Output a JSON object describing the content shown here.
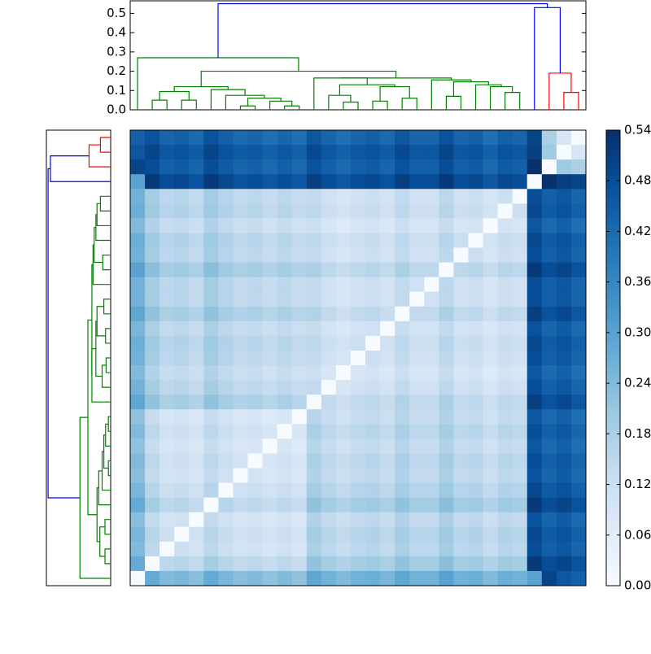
{
  "chart_data": {
    "type": "clustermap",
    "zlim": [
      0,
      0.54
    ],
    "colormap": [
      "#f7fbff",
      "#deebf7",
      "#c6dbef",
      "#9ecae1",
      "#6baed6",
      "#4292c6",
      "#2171b5",
      "#08519c",
      "#08306b"
    ],
    "colorbar": {
      "ticks": [
        {
          "value": 0,
          "label": "0.00"
        },
        0.06,
        0.12,
        0.18,
        0.24,
        {
          "value": 0.3,
          "label": "0.30"
        },
        0.36,
        0.42,
        0.48,
        0.54
      ]
    },
    "matrix": [
      [
        0.44,
        0.47,
        0.43,
        0.44,
        0.42,
        0.47,
        0.44,
        0.42,
        0.43,
        0.41,
        0.43,
        0.41,
        0.46,
        0.43,
        0.41,
        0.43,
        0.44,
        0.42,
        0.46,
        0.43,
        0.43,
        0.47,
        0.43,
        0.44,
        0.41,
        0.44,
        0.43,
        0.5,
        0.18,
        0.09,
        0
      ],
      [
        0.46,
        0.5,
        0.46,
        0.47,
        0.45,
        0.5,
        0.47,
        0.45,
        0.46,
        0.44,
        0.46,
        0.44,
        0.49,
        0.46,
        0.44,
        0.46,
        0.47,
        0.45,
        0.49,
        0.46,
        0.46,
        0.5,
        0.46,
        0.47,
        0.44,
        0.47,
        0.46,
        0.51,
        0.2,
        0,
        0.09
      ],
      [
        0.5,
        0.48,
        0.44,
        0.45,
        0.43,
        0.48,
        0.45,
        0.43,
        0.44,
        0.42,
        0.44,
        0.42,
        0.47,
        0.44,
        0.42,
        0.44,
        0.45,
        0.43,
        0.47,
        0.44,
        0.44,
        0.48,
        0.44,
        0.45,
        0.42,
        0.45,
        0.44,
        0.54,
        0,
        0.2,
        0.18
      ],
      [
        0.3,
        0.52,
        0.48,
        0.49,
        0.47,
        0.52,
        0.49,
        0.47,
        0.48,
        0.46,
        0.48,
        0.46,
        0.51,
        0.48,
        0.46,
        0.48,
        0.49,
        0.47,
        0.51,
        0.48,
        0.48,
        0.52,
        0.48,
        0.49,
        0.46,
        0.49,
        0.48,
        0,
        0.54,
        0.51,
        0.5
      ],
      [
        0.26,
        0.19,
        0.15,
        0.16,
        0.14,
        0.19,
        0.16,
        0.14,
        0.15,
        0.13,
        0.15,
        0.13,
        0.14,
        0.11,
        0.09,
        0.11,
        0.12,
        0.1,
        0.14,
        0.11,
        0.11,
        0.15,
        0.11,
        0.12,
        0.09,
        0.12,
        0,
        0.48,
        0.44,
        0.46,
        0.43
      ],
      [
        0.27,
        0.2,
        0.16,
        0.17,
        0.15,
        0.2,
        0.17,
        0.15,
        0.16,
        0.14,
        0.16,
        0.14,
        0.15,
        0.12,
        0.1,
        0.12,
        0.13,
        0.11,
        0.15,
        0.12,
        0.12,
        0.16,
        0.12,
        0.13,
        0.1,
        0,
        0.12,
        0.49,
        0.45,
        0.47,
        0.44
      ],
      [
        0.24,
        0.17,
        0.13,
        0.14,
        0.12,
        0.17,
        0.14,
        0.12,
        0.13,
        0.11,
        0.13,
        0.11,
        0.12,
        0.09,
        0.07,
        0.09,
        0.1,
        0.08,
        0.12,
        0.09,
        0.09,
        0.13,
        0.09,
        0.1,
        0,
        0.1,
        0.09,
        0.46,
        0.42,
        0.44,
        0.41
      ],
      [
        0.27,
        0.2,
        0.16,
        0.17,
        0.15,
        0.2,
        0.17,
        0.15,
        0.16,
        0.14,
        0.16,
        0.14,
        0.15,
        0.12,
        0.1,
        0.12,
        0.13,
        0.11,
        0.15,
        0.12,
        0.12,
        0.16,
        0.12,
        0,
        0.1,
        0.13,
        0.12,
        0.49,
        0.45,
        0.47,
        0.44
      ],
      [
        0.26,
        0.19,
        0.15,
        0.16,
        0.14,
        0.19,
        0.16,
        0.14,
        0.15,
        0.13,
        0.15,
        0.13,
        0.14,
        0.11,
        0.09,
        0.11,
        0.12,
        0.1,
        0.14,
        0.11,
        0.11,
        0.15,
        0,
        0.12,
        0.09,
        0.12,
        0.11,
        0.48,
        0.44,
        0.46,
        0.43
      ],
      [
        0.3,
        0.23,
        0.19,
        0.2,
        0.18,
        0.23,
        0.2,
        0.18,
        0.19,
        0.17,
        0.19,
        0.17,
        0.18,
        0.15,
        0.13,
        0.15,
        0.16,
        0.14,
        0.18,
        0.15,
        0.15,
        0,
        0.15,
        0.16,
        0.13,
        0.16,
        0.15,
        0.52,
        0.48,
        0.5,
        0.47
      ],
      [
        0.26,
        0.19,
        0.15,
        0.16,
        0.14,
        0.19,
        0.16,
        0.14,
        0.15,
        0.13,
        0.15,
        0.13,
        0.14,
        0.11,
        0.09,
        0.11,
        0.12,
        0.1,
        0.14,
        0.11,
        0,
        0.15,
        0.11,
        0.12,
        0.09,
        0.12,
        0.11,
        0.48,
        0.44,
        0.46,
        0.43
      ],
      [
        0.26,
        0.19,
        0.15,
        0.16,
        0.14,
        0.19,
        0.16,
        0.14,
        0.15,
        0.13,
        0.15,
        0.13,
        0.14,
        0.11,
        0.09,
        0.11,
        0.12,
        0.1,
        0.14,
        0,
        0.11,
        0.15,
        0.11,
        0.12,
        0.09,
        0.12,
        0.11,
        0.48,
        0.44,
        0.46,
        0.43
      ],
      [
        0.29,
        0.22,
        0.18,
        0.19,
        0.17,
        0.22,
        0.19,
        0.17,
        0.18,
        0.16,
        0.18,
        0.16,
        0.17,
        0.14,
        0.12,
        0.14,
        0.15,
        0.13,
        0,
        0.14,
        0.14,
        0.18,
        0.14,
        0.15,
        0.12,
        0.15,
        0.14,
        0.51,
        0.47,
        0.49,
        0.46
      ],
      [
        0.25,
        0.18,
        0.14,
        0.15,
        0.13,
        0.18,
        0.15,
        0.13,
        0.14,
        0.12,
        0.14,
        0.12,
        0.13,
        0.1,
        0.08,
        0.1,
        0.11,
        0,
        0.13,
        0.1,
        0.1,
        0.14,
        0.1,
        0.11,
        0.08,
        0.11,
        0.1,
        0.47,
        0.43,
        0.45,
        0.42
      ],
      [
        0.27,
        0.2,
        0.16,
        0.17,
        0.15,
        0.2,
        0.17,
        0.15,
        0.16,
        0.14,
        0.16,
        0.14,
        0.15,
        0.12,
        0.1,
        0.12,
        0,
        0.11,
        0.15,
        0.12,
        0.12,
        0.16,
        0.12,
        0.13,
        0.1,
        0.13,
        0.12,
        0.49,
        0.45,
        0.47,
        0.44
      ],
      [
        0.26,
        0.19,
        0.15,
        0.16,
        0.14,
        0.19,
        0.16,
        0.14,
        0.15,
        0.13,
        0.15,
        0.13,
        0.14,
        0.11,
        0.09,
        0,
        0.12,
        0.1,
        0.14,
        0.11,
        0.11,
        0.15,
        0.11,
        0.12,
        0.09,
        0.12,
        0.11,
        0.48,
        0.44,
        0.46,
        0.43
      ],
      [
        0.24,
        0.17,
        0.13,
        0.14,
        0.12,
        0.17,
        0.14,
        0.12,
        0.13,
        0.11,
        0.13,
        0.11,
        0.12,
        0.09,
        0,
        0.09,
        0.1,
        0.08,
        0.12,
        0.09,
        0.09,
        0.13,
        0.09,
        0.1,
        0.07,
        0.1,
        0.09,
        0.46,
        0.42,
        0.44,
        0.41
      ],
      [
        0.26,
        0.19,
        0.15,
        0.16,
        0.14,
        0.19,
        0.16,
        0.14,
        0.15,
        0.13,
        0.15,
        0.13,
        0.14,
        0,
        0.09,
        0.11,
        0.12,
        0.1,
        0.14,
        0.11,
        0.11,
        0.15,
        0.11,
        0.12,
        0.09,
        0.12,
        0.11,
        0.48,
        0.44,
        0.46,
        0.43
      ],
      [
        0.29,
        0.22,
        0.18,
        0.19,
        0.17,
        0.22,
        0.19,
        0.17,
        0.18,
        0.16,
        0.18,
        0.16,
        0,
        0.14,
        0.12,
        0.14,
        0.15,
        0.13,
        0.17,
        0.14,
        0.14,
        0.18,
        0.14,
        0.15,
        0.12,
        0.15,
        0.14,
        0.51,
        0.47,
        0.49,
        0.46
      ],
      [
        0.22,
        0.13,
        0.09,
        0.1,
        0.08,
        0.13,
        0.1,
        0.08,
        0.09,
        0.07,
        0.09,
        0,
        0.16,
        0.13,
        0.11,
        0.13,
        0.14,
        0.12,
        0.16,
        0.13,
        0.13,
        0.17,
        0.13,
        0.14,
        0.11,
        0.14,
        0.13,
        0.46,
        0.42,
        0.44,
        0.41
      ],
      [
        0.24,
        0.15,
        0.11,
        0.12,
        0.1,
        0.15,
        0.12,
        0.1,
        0.11,
        0.09,
        0,
        0.09,
        0.18,
        0.15,
        0.13,
        0.15,
        0.16,
        0.14,
        0.18,
        0.15,
        0.15,
        0.19,
        0.15,
        0.16,
        0.13,
        0.16,
        0.15,
        0.48,
        0.44,
        0.46,
        0.43
      ],
      [
        0.22,
        0.13,
        0.09,
        0.1,
        0.08,
        0.13,
        0.1,
        0.08,
        0.09,
        0,
        0.09,
        0.07,
        0.16,
        0.13,
        0.11,
        0.13,
        0.14,
        0.12,
        0.16,
        0.13,
        0.13,
        0.17,
        0.13,
        0.14,
        0.11,
        0.14,
        0.13,
        0.46,
        0.42,
        0.44,
        0.41
      ],
      [
        0.24,
        0.15,
        0.11,
        0.12,
        0.1,
        0.15,
        0.12,
        0.1,
        0,
        0.09,
        0.11,
        0.09,
        0.18,
        0.15,
        0.13,
        0.15,
        0.16,
        0.14,
        0.18,
        0.15,
        0.15,
        0.19,
        0.15,
        0.16,
        0.13,
        0.16,
        0.15,
        0.48,
        0.44,
        0.46,
        0.43
      ],
      [
        0.23,
        0.14,
        0.1,
        0.11,
        0.09,
        0.14,
        0.11,
        0,
        0.1,
        0.08,
        0.1,
        0.08,
        0.17,
        0.14,
        0.12,
        0.14,
        0.15,
        0.13,
        0.17,
        0.14,
        0.14,
        0.18,
        0.14,
        0.15,
        0.12,
        0.15,
        0.14,
        0.47,
        0.43,
        0.45,
        0.42
      ],
      [
        0.25,
        0.16,
        0.12,
        0.13,
        0.11,
        0.16,
        0,
        0.11,
        0.12,
        0.1,
        0.12,
        0.1,
        0.19,
        0.16,
        0.14,
        0.16,
        0.17,
        0.15,
        0.19,
        0.16,
        0.16,
        0.2,
        0.16,
        0.17,
        0.14,
        0.17,
        0.16,
        0.49,
        0.45,
        0.47,
        0.44
      ],
      [
        0.28,
        0.19,
        0.15,
        0.16,
        0.14,
        0,
        0.16,
        0.14,
        0.15,
        0.13,
        0.15,
        0.13,
        0.22,
        0.19,
        0.17,
        0.19,
        0.2,
        0.18,
        0.22,
        0.19,
        0.19,
        0.23,
        0.19,
        0.2,
        0.17,
        0.2,
        0.19,
        0.52,
        0.48,
        0.5,
        0.47
      ],
      [
        0.23,
        0.14,
        0.1,
        0.11,
        0,
        0.14,
        0.11,
        0.09,
        0.1,
        0.08,
        0.1,
        0.08,
        0.17,
        0.14,
        0.12,
        0.14,
        0.15,
        0.13,
        0.17,
        0.14,
        0.14,
        0.18,
        0.14,
        0.15,
        0.12,
        0.15,
        0.14,
        0.47,
        0.43,
        0.45,
        0.42
      ],
      [
        0.25,
        0.16,
        0.12,
        0,
        0.11,
        0.16,
        0.13,
        0.11,
        0.12,
        0.1,
        0.12,
        0.1,
        0.19,
        0.16,
        0.14,
        0.16,
        0.17,
        0.15,
        0.19,
        0.16,
        0.16,
        0.2,
        0.16,
        0.17,
        0.14,
        0.17,
        0.16,
        0.49,
        0.45,
        0.47,
        0.44
      ],
      [
        0.24,
        0.15,
        0,
        0.12,
        0.1,
        0.15,
        0.12,
        0.1,
        0.11,
        0.09,
        0.11,
        0.09,
        0.18,
        0.15,
        0.13,
        0.15,
        0.16,
        0.14,
        0.18,
        0.15,
        0.15,
        0.19,
        0.15,
        0.16,
        0.13,
        0.16,
        0.15,
        0.48,
        0.44,
        0.46,
        0.43
      ],
      [
        0.28,
        0,
        0.15,
        0.16,
        0.14,
        0.19,
        0.16,
        0.14,
        0.15,
        0.13,
        0.15,
        0.13,
        0.22,
        0.19,
        0.17,
        0.19,
        0.2,
        0.18,
        0.22,
        0.19,
        0.19,
        0.23,
        0.19,
        0.2,
        0.17,
        0.2,
        0.19,
        0.52,
        0.48,
        0.5,
        0.47
      ],
      [
        0,
        0.28,
        0.24,
        0.25,
        0.23,
        0.28,
        0.25,
        0.23,
        0.24,
        0.22,
        0.24,
        0.22,
        0.29,
        0.26,
        0.24,
        0.26,
        0.27,
        0.25,
        0.29,
        0.26,
        0.26,
        0.3,
        0.26,
        0.27,
        0.24,
        0.27,
        0.26,
        0.3,
        0.5,
        0.46,
        0.44
      ]
    ],
    "dendrogram": {
      "ylim": [
        0,
        0.565
      ],
      "yticks": [
        {
          "value": 0,
          "label": "0.0"
        },
        0.1,
        0.2,
        0.3,
        0.4,
        0.5
      ],
      "links": [
        {
          "children": [
            1,
            2
          ],
          "height": 0.05,
          "color": "#008000"
        },
        {
          "children": [
            3,
            4
          ],
          "height": 0.05,
          "color": "#008000"
        },
        {
          "children": [
            31,
            32
          ],
          "height": 0.095,
          "color": "#008000"
        },
        {
          "children": [
            7,
            8
          ],
          "height": 0.02,
          "color": "#008000"
        },
        {
          "children": [
            10,
            11
          ],
          "height": 0.02,
          "color": "#008000"
        },
        {
          "children": [
            9,
            35
          ],
          "height": 0.045,
          "color": "#008000"
        },
        {
          "children": [
            34,
            36
          ],
          "height": 0.06,
          "color": "#008000"
        },
        {
          "children": [
            6,
            37
          ],
          "height": 0.075,
          "color": "#008000"
        },
        {
          "children": [
            5,
            38
          ],
          "height": 0.105,
          "color": "#008000"
        },
        {
          "children": [
            33,
            39
          ],
          "height": 0.12,
          "color": "#008000"
        },
        {
          "children": [
            14,
            15
          ],
          "height": 0.04,
          "color": "#008000"
        },
        {
          "children": [
            13,
            41
          ],
          "height": 0.075,
          "color": "#008000"
        },
        {
          "children": [
            16,
            17
          ],
          "height": 0.045,
          "color": "#008000"
        },
        {
          "children": [
            18,
            19
          ],
          "height": 0.06,
          "color": "#008000"
        },
        {
          "children": [
            43,
            44
          ],
          "height": 0.12,
          "color": "#008000"
        },
        {
          "children": [
            42,
            45
          ],
          "height": 0.13,
          "color": "#008000"
        },
        {
          "children": [
            12,
            46
          ],
          "height": 0.165,
          "color": "#008000"
        },
        {
          "children": [
            21,
            22
          ],
          "height": 0.07,
          "color": "#008000"
        },
        {
          "children": [
            25,
            26
          ],
          "height": 0.09,
          "color": "#008000"
        },
        {
          "children": [
            24,
            49
          ],
          "height": 0.12,
          "color": "#008000"
        },
        {
          "children": [
            23,
            50
          ],
          "height": 0.13,
          "color": "#008000"
        },
        {
          "children": [
            48,
            51
          ],
          "height": 0.145,
          "color": "#008000"
        },
        {
          "children": [
            20,
            52
          ],
          "height": 0.155,
          "color": "#008000"
        },
        {
          "children": [
            47,
            53
          ],
          "height": 0.165,
          "color": "#008000"
        },
        {
          "children": [
            40,
            54
          ],
          "height": 0.2,
          "color": "#008000"
        },
        {
          "children": [
            0,
            55
          ],
          "height": 0.27,
          "color": "#008000"
        },
        {
          "children": [
            29,
            30
          ],
          "height": 0.09,
          "color": "#ff0000"
        },
        {
          "children": [
            28,
            57
          ],
          "height": 0.19,
          "color": "#ff0000"
        },
        {
          "children": [
            27,
            58
          ],
          "height": 0.53,
          "color": "#0000ff"
        },
        {
          "children": [
            56,
            59
          ],
          "height": 0.55,
          "color": "#0000ff"
        }
      ]
    }
  }
}
